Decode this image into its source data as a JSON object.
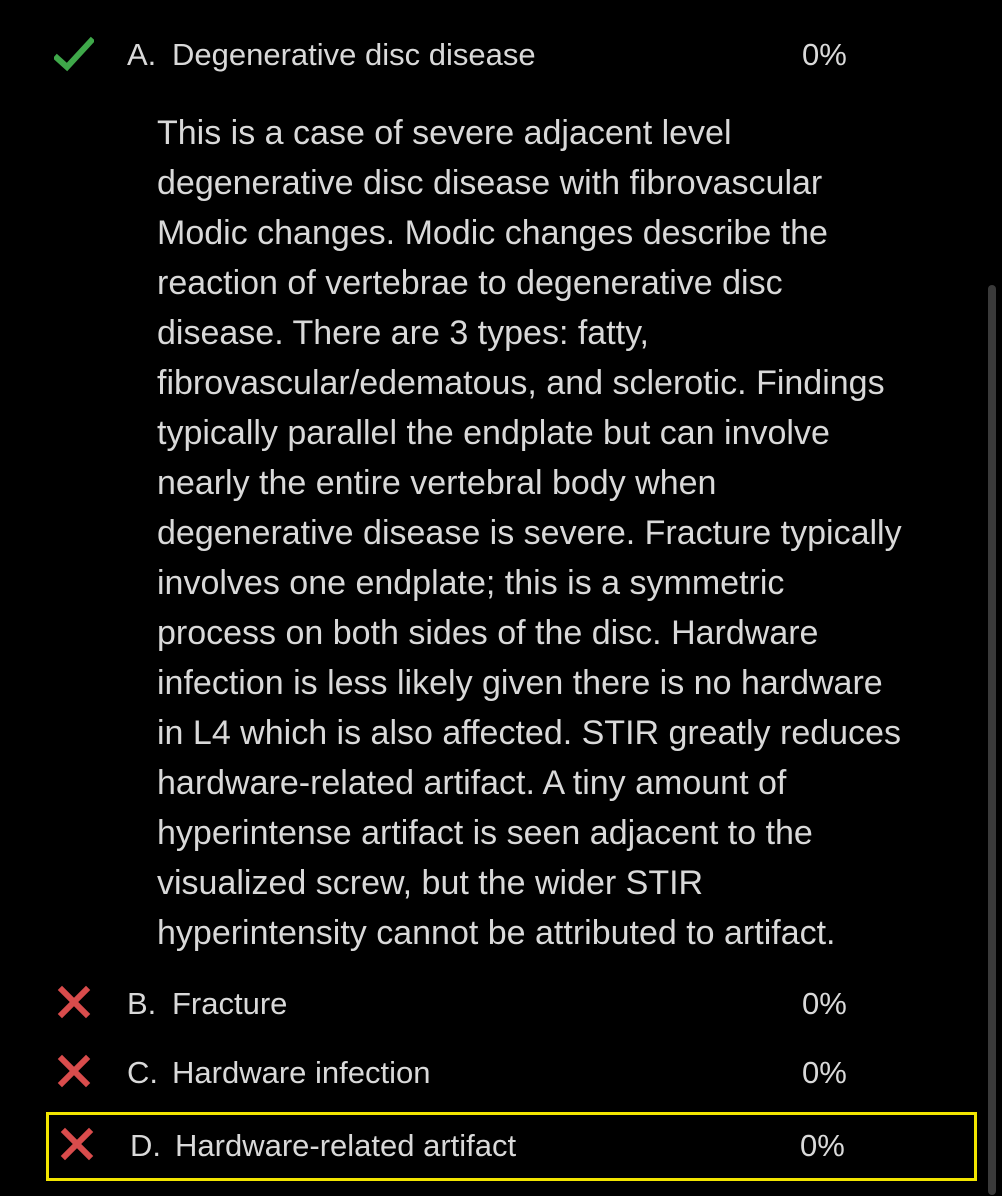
{
  "options": [
    {
      "letter": "A.",
      "text": "Degenerative disc disease",
      "percent": "0%",
      "icon": "check-icon",
      "status": "correct"
    },
    {
      "letter": "B.",
      "text": "Fracture",
      "percent": "0%",
      "icon": "x-icon",
      "status": "incorrect"
    },
    {
      "letter": "C.",
      "text": "Hardware infection",
      "percent": "0%",
      "icon": "x-icon",
      "status": "incorrect"
    },
    {
      "letter": "D.",
      "text": "Hardware-related artifact",
      "percent": "0%",
      "icon": "x-icon",
      "status": "incorrect",
      "selected": true
    }
  ],
  "explanation": {
    "lines": [
      "This is a case of severe adjacent level",
      "degenerative disc disease with fibrovascular",
      "Modic changes. Modic changes describe the",
      "reaction of vertebrae to degenerative disc",
      "disease. There are 3 types: fatty,",
      "fibrovascular/edematous, and sclerotic. Findings",
      "typically parallel the endplate but can involve",
      "nearly the entire vertebral body when",
      "degenerative disease is severe. Fracture typically",
      "involves one endplate; this is a symmetric",
      "process on both sides of the disc. Hardware",
      "infection is less likely given there is no hardware",
      "in L4 which is also affected. STIR greatly reduces",
      "hardware-related artifact. A tiny amount of",
      "hyperintense artifact is seen adjacent to the",
      "visualized screw, but the wider STIR",
      "hyperintensity cannot be attributed to artifact."
    ]
  },
  "colors": {
    "background": "#000000",
    "text": "#d9d9d9",
    "correct": "#3fa84a",
    "incorrect": "#d94c4c",
    "highlight_border": "#f2e500"
  }
}
